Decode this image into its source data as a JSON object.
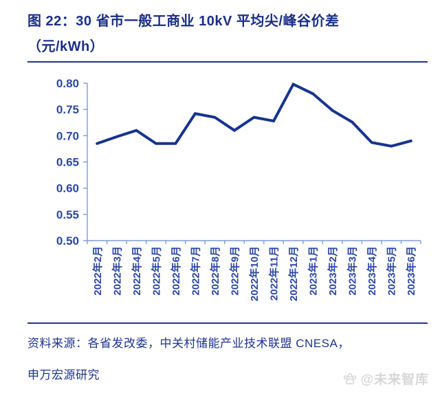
{
  "figure": {
    "title_line1": "图 22：30 省市一般工商业 10kV 平均尖/峰谷价差",
    "title_line2": "（元/kWh）",
    "source_line1": "资料来源：各省发改委，中关村储能产业技术联盟 CNESA，",
    "source_line2": "申万宏源研究",
    "watermark_text": "@未来智库"
  },
  "colors": {
    "title": "#1b2e86",
    "axis_labels": "#2b47a5",
    "series_line": "#16338e",
    "axis_line": "#7e9bd7",
    "divider": "#24367d",
    "watermark": "#d7d7d7"
  },
  "chart_data": {
    "type": "line",
    "title": "30 省市一般工商业 10kV 平均尖/峰谷价差（元/kWh）",
    "categories": [
      "2022年2月",
      "2022年3月",
      "2022年4月",
      "2022年5月",
      "2022年6月",
      "2022年7月",
      "2022年8月",
      "2022年9月",
      "2022年10月",
      "2022年11月",
      "2022年12月",
      "2023年1月",
      "2023年2月",
      "2023年3月",
      "2023年4月",
      "2023年5月",
      "2023年6月"
    ],
    "series": [
      {
        "name": "平均尖/峰谷价差",
        "values": [
          0.685,
          0.698,
          0.71,
          0.685,
          0.685,
          0.742,
          0.735,
          0.71,
          0.735,
          0.728,
          0.798,
          0.78,
          0.748,
          0.726,
          0.687,
          0.68,
          0.69
        ]
      }
    ],
    "xlabel": "",
    "ylabel": "",
    "ylim": [
      0.5,
      0.8
    ],
    "ytick_labels": [
      "0.80",
      "0.75",
      "0.70",
      "0.65",
      "0.60",
      "0.55",
      "0.50"
    ],
    "grid": false,
    "legend_position": "none"
  }
}
